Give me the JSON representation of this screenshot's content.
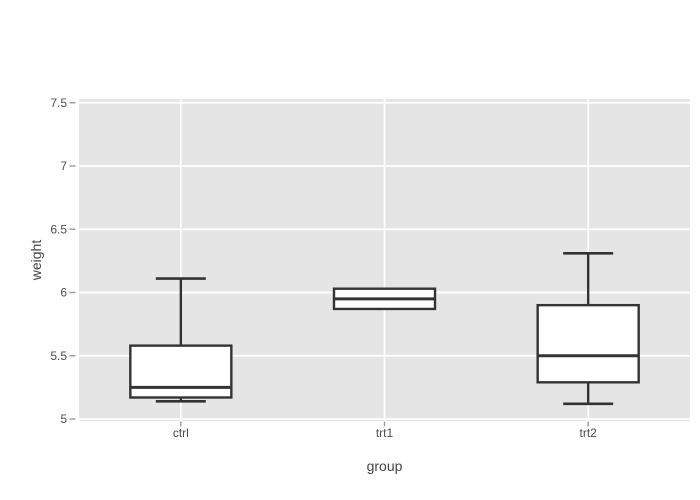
{
  "figure": {
    "background": "#ffffff"
  },
  "chart_data": {
    "type": "box",
    "title": "",
    "xlabel": "group",
    "ylabel": "weight",
    "categories": [
      "ctrl",
      "trt1",
      "trt2"
    ],
    "series": [
      {
        "name": "ctrl",
        "min": 5.14,
        "q1": 5.17,
        "median": 5.25,
        "q3": 5.58,
        "max": 6.11
      },
      {
        "name": "trt1",
        "min": 5.87,
        "q1": 5.87,
        "median": 5.95,
        "q3": 6.03,
        "max": 6.03
      },
      {
        "name": "trt2",
        "min": 5.12,
        "q1": 5.29,
        "median": 5.5,
        "q3": 5.9,
        "max": 6.31
      }
    ],
    "ylim": [
      5,
      7.5
    ],
    "yticks": [
      5,
      5.5,
      6,
      6.5,
      7,
      7.5
    ],
    "ytick_labels": [
      "5",
      "5.5",
      "6",
      "6.5",
      "7",
      "7.5"
    ],
    "grid": true,
    "legend": "none",
    "style": {
      "panel_bg": "#e5e5e5",
      "grid_color": "#ffffff",
      "box_fill": "#ffffff",
      "box_border": "#333333",
      "tick_mark_color": "#999999",
      "tick_label_color": "#4d4d4d",
      "axis_title_color": "#444444"
    }
  }
}
